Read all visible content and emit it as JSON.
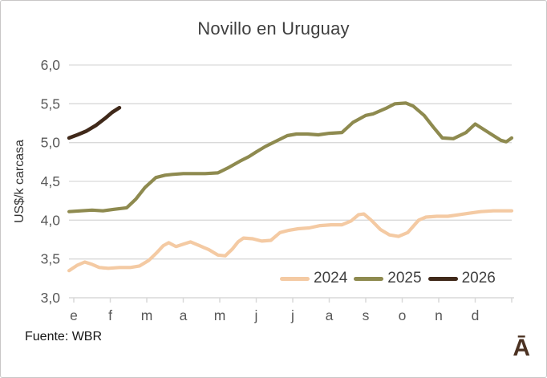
{
  "window": {
    "background": "#FFFFFF",
    "border_color": "#C9C7C7"
  },
  "footer": {
    "source": "Fuente: WBR",
    "logo_glyph": "Ā",
    "logo_color": "#4B3222"
  },
  "chart_data": {
    "type": "line",
    "title": "Novillo en Uruguay",
    "xlabel": "",
    "ylabel": "US$/k carcasa",
    "ylim": [
      3.0,
      6.0
    ],
    "ytick_step": 0.5,
    "ytick_labels": [
      "3,0",
      "3,5",
      "4,0",
      "4,5",
      "5,0",
      "5,5",
      "6,0"
    ],
    "ytick_values": [
      3.0,
      3.5,
      4.0,
      4.5,
      5.0,
      5.5,
      6.0
    ],
    "x_categories": [
      "e",
      "f",
      "m",
      "a",
      "m",
      "j",
      "j",
      "a",
      "s",
      "o",
      "n",
      "d"
    ],
    "x_unit_note": "x in month units, 0 = January (e) tick; data sampled ~weekly",
    "grid": "horizontal",
    "grid_color": "#D9D9D9",
    "axis_label_color": "#595959",
    "legend_position": "inside-bottom-right",
    "series": [
      {
        "name": "2024",
        "color": "#F4CAA3",
        "points": [
          [
            -0.13,
            3.35
          ],
          [
            0.1,
            3.42
          ],
          [
            0.3,
            3.46
          ],
          [
            0.5,
            3.43
          ],
          [
            0.7,
            3.39
          ],
          [
            0.95,
            3.38
          ],
          [
            1.25,
            3.39
          ],
          [
            1.55,
            3.39
          ],
          [
            1.8,
            3.41
          ],
          [
            2.05,
            3.48
          ],
          [
            2.25,
            3.57
          ],
          [
            2.45,
            3.67
          ],
          [
            2.6,
            3.71
          ],
          [
            2.8,
            3.66
          ],
          [
            3.0,
            3.69
          ],
          [
            3.2,
            3.72
          ],
          [
            3.45,
            3.67
          ],
          [
            3.7,
            3.62
          ],
          [
            3.95,
            3.55
          ],
          [
            4.15,
            3.54
          ],
          [
            4.35,
            3.63
          ],
          [
            4.5,
            3.72
          ],
          [
            4.65,
            3.77
          ],
          [
            4.9,
            3.76
          ],
          [
            5.15,
            3.73
          ],
          [
            5.4,
            3.74
          ],
          [
            5.65,
            3.84
          ],
          [
            5.9,
            3.87
          ],
          [
            6.15,
            3.89
          ],
          [
            6.45,
            3.9
          ],
          [
            6.75,
            3.93
          ],
          [
            7.05,
            3.94
          ],
          [
            7.35,
            3.94
          ],
          [
            7.6,
            3.99
          ],
          [
            7.8,
            4.07
          ],
          [
            7.95,
            4.08
          ],
          [
            8.15,
            4.0
          ],
          [
            8.4,
            3.88
          ],
          [
            8.65,
            3.81
          ],
          [
            8.9,
            3.79
          ],
          [
            9.15,
            3.84
          ],
          [
            9.45,
            4.0
          ],
          [
            9.65,
            4.04
          ],
          [
            9.95,
            4.05
          ],
          [
            10.25,
            4.05
          ],
          [
            10.55,
            4.07
          ],
          [
            10.85,
            4.09
          ],
          [
            11.15,
            4.11
          ],
          [
            11.5,
            4.12
          ],
          [
            12.0,
            4.12
          ]
        ]
      },
      {
        "name": "2025",
        "color": "#8E8A4F",
        "points": [
          [
            -0.13,
            4.11
          ],
          [
            0.2,
            4.12
          ],
          [
            0.5,
            4.13
          ],
          [
            0.8,
            4.12
          ],
          [
            1.1,
            4.14
          ],
          [
            1.45,
            4.16
          ],
          [
            1.7,
            4.27
          ],
          [
            1.95,
            4.42
          ],
          [
            2.25,
            4.55
          ],
          [
            2.5,
            4.58
          ],
          [
            2.7,
            4.59
          ],
          [
            3.0,
            4.6
          ],
          [
            3.3,
            4.6
          ],
          [
            3.6,
            4.6
          ],
          [
            3.95,
            4.61
          ],
          [
            4.25,
            4.68
          ],
          [
            4.55,
            4.76
          ],
          [
            4.8,
            4.82
          ],
          [
            5.0,
            4.88
          ],
          [
            5.25,
            4.95
          ],
          [
            5.55,
            5.02
          ],
          [
            5.85,
            5.09
          ],
          [
            6.1,
            5.11
          ],
          [
            6.4,
            5.11
          ],
          [
            6.7,
            5.1
          ],
          [
            7.0,
            5.12
          ],
          [
            7.35,
            5.13
          ],
          [
            7.65,
            5.26
          ],
          [
            8.0,
            5.35
          ],
          [
            8.2,
            5.37
          ],
          [
            8.55,
            5.44
          ],
          [
            8.8,
            5.5
          ],
          [
            9.1,
            5.51
          ],
          [
            9.3,
            5.47
          ],
          [
            9.6,
            5.35
          ],
          [
            9.85,
            5.2
          ],
          [
            10.1,
            5.06
          ],
          [
            10.4,
            5.05
          ],
          [
            10.75,
            5.13
          ],
          [
            11.0,
            5.24
          ],
          [
            11.4,
            5.12
          ],
          [
            11.7,
            5.03
          ],
          [
            11.85,
            5.01
          ],
          [
            12.0,
            5.06
          ]
        ]
      },
      {
        "name": "2026",
        "color": "#40291A",
        "points": [
          [
            -0.13,
            5.06
          ],
          [
            0.1,
            5.1
          ],
          [
            0.35,
            5.15
          ],
          [
            0.6,
            5.22
          ],
          [
            0.85,
            5.31
          ],
          [
            1.05,
            5.39
          ],
          [
            1.25,
            5.45
          ]
        ]
      }
    ]
  }
}
